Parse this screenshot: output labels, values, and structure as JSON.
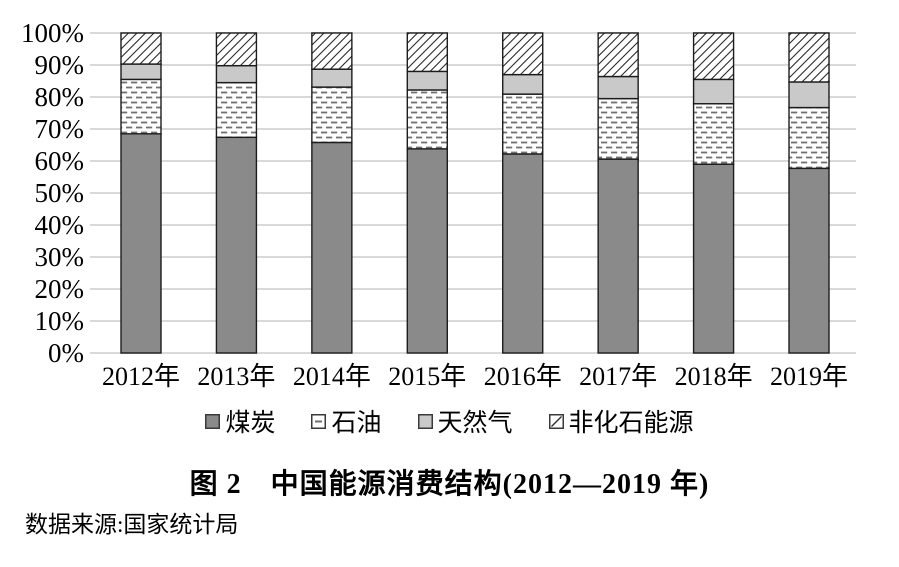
{
  "figure": {
    "title": "图 2　中国能源消费结构(2012—2019 年)",
    "source": "数据来源:国家统计局"
  },
  "chart_data": {
    "type": "bar",
    "stacked": true,
    "unit": "%",
    "title": "图 2　中国能源消费结构(2012—2019 年)",
    "xlabel": "",
    "ylabel": "",
    "categories": [
      "2012年",
      "2013年",
      "2014年",
      "2015年",
      "2016年",
      "2017年",
      "2018年",
      "2019年"
    ],
    "series": [
      {
        "name": "煤炭",
        "pattern": "solid",
        "color": "#8a8a8a",
        "values": [
          68.5,
          67.4,
          65.8,
          63.8,
          62.2,
          60.6,
          59.0,
          57.7
        ]
      },
      {
        "name": "石油",
        "pattern": "dashes",
        "color": "#ffffff",
        "dash_color": "#707070",
        "values": [
          17.0,
          17.1,
          17.3,
          18.4,
          18.7,
          18.9,
          18.9,
          19.0
        ]
      },
      {
        "name": "天然气",
        "pattern": "solid",
        "color": "#c9c9c9",
        "values": [
          4.8,
          5.3,
          5.6,
          5.8,
          6.1,
          6.9,
          7.6,
          8.0
        ]
      },
      {
        "name": "非化石能源",
        "pattern": "diagonal-hatch",
        "color": "#ffffff",
        "hatch_color": "#2a2a2a",
        "values": [
          9.7,
          10.2,
          11.3,
          12.0,
          13.0,
          13.6,
          14.5,
          15.3
        ]
      }
    ],
    "y_ticks": [
      "0%",
      "10%",
      "20%",
      "30%",
      "40%",
      "50%",
      "60%",
      "70%",
      "80%",
      "90%",
      "100%"
    ],
    "ylim": [
      0,
      100
    ],
    "grid": true,
    "gridline_color": "#d9d9d9",
    "bar_border_color": "#1c1c1c",
    "legend_position": "bottom"
  }
}
